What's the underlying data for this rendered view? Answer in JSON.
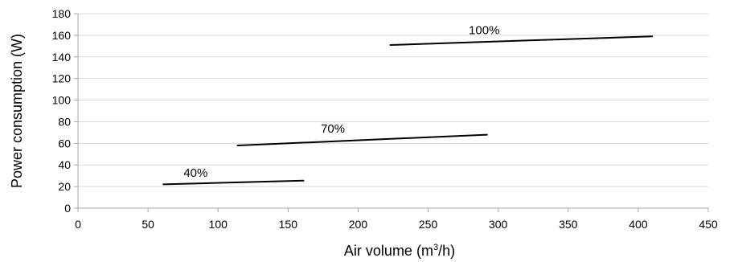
{
  "chart_data": {
    "type": "line",
    "xlabel_main": "Air volume (m",
    "xlabel_sup": "3",
    "xlabel_tail": "/h)",
    "ylabel": "Power consumption (W)",
    "xlim": [
      0,
      450
    ],
    "ylim": [
      0,
      180
    ],
    "xticks": [
      0,
      50,
      100,
      150,
      200,
      250,
      300,
      350,
      400,
      450
    ],
    "yticks": [
      0,
      20,
      40,
      60,
      80,
      100,
      120,
      140,
      160,
      180
    ],
    "grid": "horizontal",
    "series": [
      {
        "name": "40%",
        "x": [
          61,
          161
        ],
        "y": [
          22,
          25.5
        ],
        "label_at": [
          84,
          29
        ]
      },
      {
        "name": "70%",
        "x": [
          114,
          292
        ],
        "y": [
          58,
          68
        ],
        "label_at": [
          182,
          70
        ]
      },
      {
        "name": "100%",
        "x": [
          223,
          410
        ],
        "y": [
          151,
          159
        ],
        "label_at": [
          290,
          161
        ]
      }
    ]
  }
}
